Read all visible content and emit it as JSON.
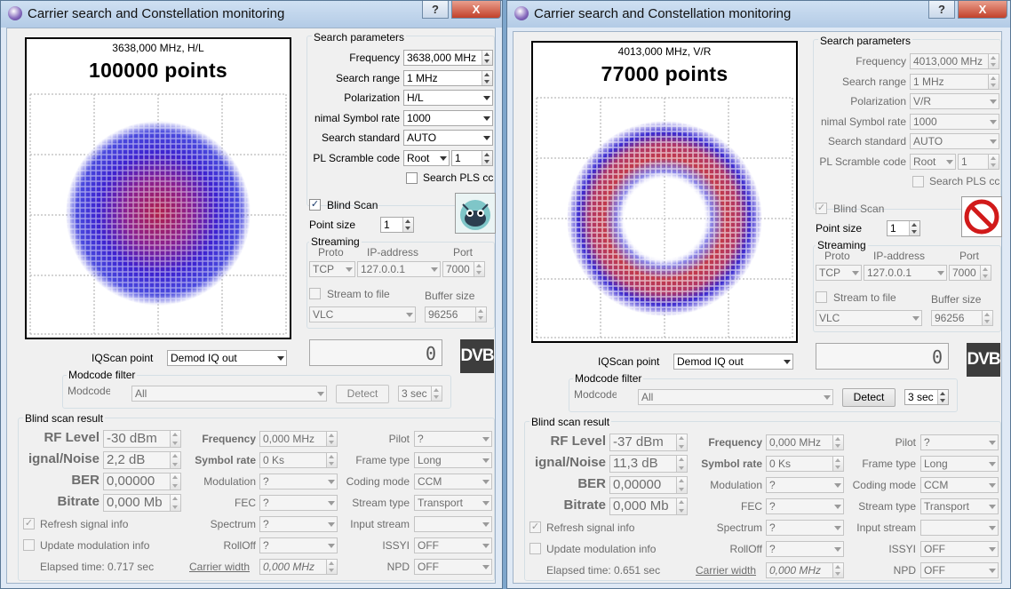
{
  "windows": [
    {
      "title": "Carrier search and Constellation monitoring",
      "help_btn": "?",
      "close_btn": "X",
      "plot": {
        "freq_pol": "3638,000 MHz, H/L",
        "points": "100000 points"
      },
      "search": {
        "group_label": "Search parameters",
        "frequency_label": "Frequency",
        "frequency": "3638,000 MHz",
        "range_label": "Search range",
        "range": "1 MHz",
        "polarization_label": "Polarization",
        "polarization": "H/L",
        "symrate_label": "nimal Symbol rate",
        "symrate": "1000",
        "standard_label": "Search standard",
        "standard": "AUTO",
        "pls_label": "PL Scramble code",
        "pls_mode": "Root",
        "pls_value": "1",
        "search_pls_label": "Search PLS cc"
      },
      "blind": {
        "label": "Blind Scan",
        "checked": "✓",
        "point_size_label": "Point size",
        "point_size": "1"
      },
      "streaming": {
        "label": "Streaming",
        "proto_label": "Proto",
        "ip_label": "IP-address",
        "port_label": "Port",
        "proto": "TCP",
        "ip": "127.0.0.1",
        "port": "7000",
        "stream_to_file": "Stream to file",
        "buffer_label": "Buffer size",
        "player": "VLC",
        "buffer": "96256"
      },
      "lcd": "0",
      "dvb": "DVB",
      "iq": {
        "label": "IQScan point",
        "value": "Demod IQ out"
      },
      "modcode": {
        "label": "Modcode filter",
        "field_label": "Modcode",
        "value": "All",
        "detect": "Detect",
        "time": "3 sec"
      },
      "result": {
        "label": "Blind scan result",
        "rf_label": "RF Level",
        "rf": "-30 dBm",
        "snr_label": "ignal/Noise",
        "snr": "2,2 dB",
        "ber_label": "BER",
        "ber": "0,00000",
        "bitrate_label": "Bitrate",
        "bitrate": "0,000 Mb",
        "freq_label": "Frequency",
        "freq": "0,000 MHz",
        "sr_label": "Symbol rate",
        "sr": "0 Ks",
        "mod_label": "Modulation",
        "mod": "?",
        "fec_label": "FEC",
        "fec": "?",
        "spectrum_label": "Spectrum",
        "spectrum": "?",
        "rolloff_label": "RollOff",
        "rolloff": "?",
        "pilot_label": "Pilot",
        "pilot": "?",
        "frame_label": "Frame type",
        "frame": "Long",
        "coding_label": "Coding mode",
        "coding": "CCM",
        "stype_label": "Stream type",
        "stype": "Transport",
        "input_label": "Input stream",
        "input": "",
        "issyi_label": "ISSYI",
        "issyi": "OFF",
        "npd_label": "NPD",
        "npd": "OFF",
        "refresh_label": "Refresh signal info",
        "refresh_check": "✓",
        "update_label": "Update modulation info",
        "elapsed": "Elapsed time: 0.717 sec",
        "carrier_width_label": "Carrier width",
        "carrier_width": "0,000 MHz"
      }
    },
    {
      "title": "Carrier search and Constellation monitoring",
      "help_btn": "?",
      "close_btn": "X",
      "plot": {
        "freq_pol": "4013,000 MHz, V/R",
        "points": "77000 points"
      },
      "search": {
        "group_label": "Search parameters",
        "frequency_label": "Frequency",
        "frequency": "4013,000 MHz",
        "range_label": "Search range",
        "range": "1 MHz",
        "polarization_label": "Polarization",
        "polarization": "V/R",
        "symrate_label": "nimal Symbol rate",
        "symrate": "1000",
        "standard_label": "Search standard",
        "standard": "AUTO",
        "pls_label": "PL Scramble code",
        "pls_mode": "Root",
        "pls_value": "1",
        "search_pls_label": "Search PLS cc"
      },
      "blind": {
        "label": "Blind Scan",
        "checked": "✓",
        "point_size_label": "Point size",
        "point_size": "1"
      },
      "streaming": {
        "label": "Streaming",
        "proto_label": "Proto",
        "ip_label": "IP-address",
        "port_label": "Port",
        "proto": "TCP",
        "ip": "127.0.0.1",
        "port": "7000",
        "stream_to_file": "Stream to file",
        "buffer_label": "Buffer size",
        "player": "VLC",
        "buffer": "96256"
      },
      "lcd": "0",
      "dvb": "DVB",
      "iq": {
        "label": "IQScan point",
        "value": "Demod IQ out"
      },
      "modcode": {
        "label": "Modcode filter",
        "field_label": "Modcode",
        "value": "All",
        "detect": "Detect",
        "time": "3 sec"
      },
      "result": {
        "label": "Blind scan result",
        "rf_label": "RF Level",
        "rf": "-37 dBm",
        "snr_label": "ignal/Noise",
        "snr": "11,3 dB",
        "ber_label": "BER",
        "ber": "0,00000",
        "bitrate_label": "Bitrate",
        "bitrate": "0,000 Mb",
        "freq_label": "Frequency",
        "freq": "0,000 MHz",
        "sr_label": "Symbol rate",
        "sr": "0 Ks",
        "mod_label": "Modulation",
        "mod": "?",
        "fec_label": "FEC",
        "fec": "?",
        "spectrum_label": "Spectrum",
        "spectrum": "?",
        "rolloff_label": "RollOff",
        "rolloff": "?",
        "pilot_label": "Pilot",
        "pilot": "?",
        "frame_label": "Frame type",
        "frame": "Long",
        "coding_label": "Coding mode",
        "coding": "CCM",
        "stype_label": "Stream type",
        "stype": "Transport",
        "input_label": "Input stream",
        "input": "",
        "issyi_label": "ISSYI",
        "issyi": "OFF",
        "npd_label": "NPD",
        "npd": "OFF",
        "refresh_label": "Refresh signal info",
        "refresh_check": "✓",
        "update_label": "Update modulation info",
        "elapsed": "Elapsed time: 0.651 sec",
        "carrier_width_label": "Carrier width",
        "carrier_width": "0,000 MHz"
      }
    }
  ]
}
